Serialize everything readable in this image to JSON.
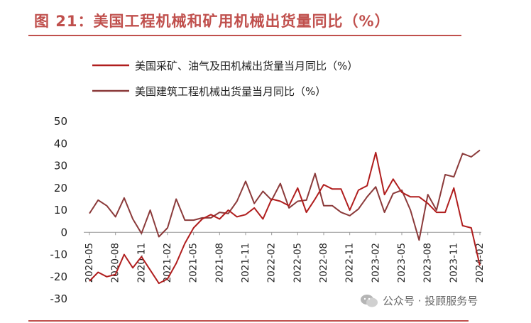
{
  "title": "图 21：美国工程机械和矿用机械出货量同比（%）",
  "watermark": "公众号 · 投顾服务号",
  "colors": {
    "mining": "#b01e1e",
    "construction": "#8b3a3a",
    "accent": "#c0504d"
  },
  "chart_data": {
    "type": "line",
    "title": "",
    "xlabel": "",
    "ylabel": "",
    "ylim": [
      -30,
      50
    ],
    "yticks": [
      50,
      40,
      30,
      20,
      10,
      0,
      -10,
      -20,
      -30
    ],
    "grid": false,
    "legend_position": "top-center",
    "x": [
      "2020-05",
      "2020-06",
      "2020-07",
      "2020-08",
      "2020-09",
      "2020-10",
      "2020-11",
      "2020-12",
      "2021-01",
      "2021-02",
      "2021-03",
      "2021-04",
      "2021-05",
      "2021-06",
      "2021-07",
      "2021-08",
      "2021-09",
      "2021-10",
      "2021-11",
      "2021-12",
      "2022-01",
      "2022-02",
      "2022-03",
      "2022-04",
      "2022-05",
      "2022-06",
      "2022-07",
      "2022-08",
      "2022-09",
      "2022-10",
      "2022-11",
      "2022-12",
      "2023-01",
      "2023-02",
      "2023-03",
      "2023-04",
      "2023-05",
      "2023-06",
      "2023-07",
      "2023-08",
      "2023-09",
      "2023-10",
      "2023-11",
      "2023-12",
      "2024-01",
      "2024-02"
    ],
    "xtick_labels": [
      "2020-05",
      "2020-08",
      "2020-11",
      "2021-02",
      "2021-05",
      "2021-08",
      "2021-11",
      "2022-02",
      "2022-05",
      "2022-08",
      "2022-11",
      "2023-02",
      "2023-05",
      "2023-08",
      "2023-11",
      "2024-02"
    ],
    "series": [
      {
        "name": "美国采矿、油气及田机械出货量当月同比（%）",
        "color": "#b01e1e",
        "values": [
          -22,
          -18,
          -20,
          -19,
          -10,
          -16,
          -11,
          -17,
          -23,
          -21,
          -14,
          -5,
          2,
          6,
          8,
          6,
          10,
          7,
          8,
          11,
          6,
          15,
          14,
          12,
          20,
          9,
          15,
          21.5,
          19.5,
          19.5,
          10,
          19,
          21,
          36,
          17,
          24,
          18,
          16,
          16,
          13,
          9,
          9,
          20,
          3,
          2,
          -15
        ]
      },
      {
        "name": "美国建筑工程机械出货量当月同比（%）",
        "color": "#8b3a3a",
        "values": [
          8.5,
          14.5,
          12,
          7,
          15.5,
          6,
          -0.5,
          10,
          -2,
          2,
          15,
          5.5,
          5.5,
          6.5,
          6.5,
          9,
          8.5,
          14,
          23,
          13,
          18.5,
          14.5,
          22,
          11,
          14,
          14.5,
          26.5,
          12,
          12,
          9,
          7.5,
          10.5,
          16,
          20.5,
          9,
          17.5,
          19,
          10,
          -3.5,
          17,
          10,
          26,
          25,
          35.5,
          34,
          37
        ]
      }
    ]
  }
}
